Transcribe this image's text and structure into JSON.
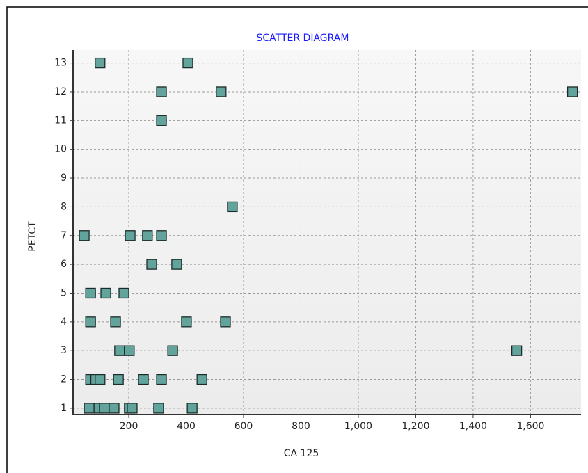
{
  "chart_data": {
    "type": "scatter",
    "title": "SCATTER DIAGRAM",
    "x_label": "CA 125",
    "y_label": "PETCT",
    "series": [
      {
        "name": "PETCT",
        "color": "#62a39b",
        "x": [
          100,
          406,
          314,
          522,
          1746,
          314,
          561,
          45,
          205,
          265,
          314,
          280,
          367,
          67,
          120,
          183,
          67,
          154,
          401,
          537,
          168,
          202,
          353,
          1552,
          67,
          85,
          100,
          164,
          251,
          314,
          455,
          62,
          96,
          115,
          149,
          202,
          212,
          304,
          421
        ],
        "values": [
          13,
          13,
          12,
          12,
          12,
          11,
          8,
          7,
          7,
          7,
          7,
          6,
          6,
          5,
          5,
          5,
          4,
          4,
          4,
          4,
          3,
          3,
          3,
          3,
          2,
          2,
          2,
          2,
          2,
          2,
          2,
          1,
          1,
          1,
          1,
          1,
          1,
          1,
          1
        ]
      }
    ],
    "xlim": [
      6,
      1776
    ],
    "ylim": [
      0.78,
      13.45
    ],
    "xticks": [
      200,
      400,
      600,
      800,
      {
        "value": 1000,
        "label": "1,000"
      },
      {
        "value": 1200,
        "label": "1,200"
      },
      {
        "value": 1400,
        "label": "1,400"
      },
      {
        "value": 1600,
        "label": "1,600"
      }
    ],
    "yticks": [
      1,
      2,
      3,
      4,
      5,
      6,
      7,
      8,
      9,
      10,
      11,
      12,
      13
    ],
    "grid": true
  }
}
